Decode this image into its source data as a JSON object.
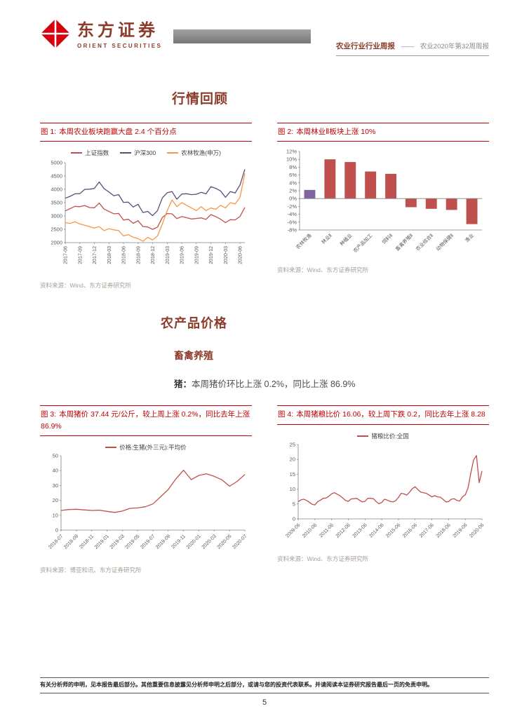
{
  "page": {
    "number": "5"
  },
  "header": {
    "brand_cn": "东方证券",
    "brand_en": "ORIENT SECURITIES",
    "report_type": "农业行业行业周报",
    "separator": "——",
    "report_title": "农业2020年第32周周报"
  },
  "sections": {
    "s1_title": "行情回顾",
    "s2_title": "农产品价格",
    "s2_sub": "畜禽养殖",
    "pig_label": "猪：",
    "pig_text": "本周猪价环比上涨 0.2%，同比上涨 86.9%"
  },
  "figures": [
    {
      "num": "图 1:",
      "caption": "本周农业板块跑赢大盘 2.4 个百分点",
      "source": "资料来源：Wind、东方证券研究所"
    },
    {
      "num": "图 2:",
      "caption": "本周林业Ⅱ板块上涨 10%",
      "source": "资料来源：Wind、东方证券研究所"
    },
    {
      "num": "图 3:",
      "caption": "本周猪价 37.44 元/公斤，较上周上涨 0.2%，同比去年上涨 86.9%",
      "source": "资料来源：博亚和讯、东方证券研究所"
    },
    {
      "num": "图 4:",
      "caption": "本周猪粮比价 16.06，较上周下跌 0.2，同比去年上涨 8.28",
      "source": "资料来源：Wind、东方证券研究所"
    }
  ],
  "footer": {
    "disclaimer": "有关分析师的申明，见本报告最后部分。其他重要信息披露见分析师申明之后部分，或请与您的投资代表联系。并请阅读本证券研究报告最后一页的免责申明。"
  },
  "colors": {
    "accent_red": "#C00000",
    "brand_red": "#8C3B2A",
    "line_red": "#C0504D",
    "line_purple": "#604A7B",
    "line_orange": "#F79646",
    "bar_purple": "#8064A2"
  },
  "chart_data": [
    {
      "type": "line",
      "title": "本周农业板块跑赢大盘 2.4 个百分点",
      "ylim": [
        2000,
        5000
      ],
      "y_step": 500,
      "y_suffix": "",
      "x_tick_every": 3,
      "x_label_rotate": -90,
      "x_tick_labels": [
        "2017-06",
        "2017-09",
        "2017-12",
        "2018-03",
        "2018-06",
        "2018-09",
        "2018-12",
        "2019-03",
        "2019-06",
        "2019-09",
        "2019-12",
        "2020-03",
        "2020-06"
      ],
      "legend_position": "top",
      "series": [
        {
          "name": "上证指数",
          "color": "#C0504D",
          "values": [
            3192,
            3273,
            3361,
            3348,
            3393,
            3317,
            3307,
            3481,
            3259,
            3169,
            3082,
            3095,
            2847,
            2876,
            2725,
            2821,
            2603,
            2588,
            2494,
            2585,
            2941,
            3091,
            3078,
            2899,
            2979,
            2933,
            2886,
            2905,
            2929,
            2872,
            3050,
            2977,
            2880,
            2750,
            2860,
            2852,
            2985,
            3320
          ]
        },
        {
          "name": "沪深300",
          "color": "#604A7B",
          "values": [
            3666,
            3737,
            3831,
            3837,
            3998,
            4006,
            4031,
            4276,
            4023,
            3899,
            3757,
            3802,
            3511,
            3519,
            3334,
            3439,
            3129,
            3172,
            3011,
            3202,
            3678,
            3872,
            3913,
            3630,
            3825,
            3835,
            3800,
            3815,
            3887,
            3828,
            4097,
            4036,
            3940,
            3700,
            3912,
            3867,
            4164,
            4750
          ]
        },
        {
          "name": "农林牧渔(申万)",
          "color": "#F79646",
          "values": [
            2750,
            2720,
            2780,
            2700,
            2650,
            2600,
            2550,
            2600,
            2450,
            2520,
            2480,
            2450,
            2250,
            2300,
            2200,
            2150,
            2050,
            2200,
            2100,
            2250,
            2700,
            3200,
            3600,
            3350,
            3500,
            3400,
            3300,
            3200,
            3350,
            3200,
            3300,
            3250,
            3400,
            3300,
            3500,
            3450,
            3700,
            4600
          ]
        }
      ]
    },
    {
      "type": "bar",
      "title": "本周林业Ⅱ板块上涨 10%",
      "ylim": [
        -8,
        12
      ],
      "y_step": 2,
      "y_suffix": "%",
      "x_label_rotate": -45,
      "categories": [
        "农林牧渔",
        "林业Ⅱ",
        "种植业",
        "农产品加工",
        "饲料Ⅱ",
        "畜禽养殖Ⅱ",
        "农业综合Ⅱ",
        "动物保健Ⅱ",
        "渔业"
      ],
      "values": [
        2.2,
        10.0,
        9.3,
        6.9,
        6.3,
        -2.2,
        -2.6,
        -2.9,
        -6.5
      ],
      "colors": [
        "#8064A2",
        "#C0504D",
        "#C0504D",
        "#C0504D",
        "#C0504D",
        "#C0504D",
        "#C0504D",
        "#C0504D",
        "#C0504D"
      ]
    },
    {
      "type": "line",
      "title": "本周猪价 37.44 元/公斤，较上周上涨 0.2%，同比去年上涨 86.9%",
      "ylim": [
        0,
        50
      ],
      "y_step": 10,
      "y_suffix": "",
      "x_tick_every": 2,
      "x_label_rotate": -45,
      "x_tick_labels": [
        "2018-07",
        "2018-09",
        "2018-11",
        "2019-01",
        "2019-03",
        "2019-05",
        "2019-07",
        "2019-09",
        "2019-11",
        "2020-01",
        "2020-03",
        "2020-05",
        "2020-07"
      ],
      "legend_position": "top",
      "series": [
        {
          "name": "价格:生猪(外三元):平均价",
          "color": "#C0504D",
          "values": [
            13.2,
            13.8,
            14.0,
            13.6,
            13.2,
            13.4,
            12.6,
            11.9,
            12.8,
            14.6,
            14.9,
            15.7,
            17.6,
            22.4,
            27.3,
            34.5,
            40.3,
            33.9,
            36.8,
            37.9,
            36.2,
            33.8,
            29.5,
            32.8,
            37.4
          ]
        }
      ]
    },
    {
      "type": "line",
      "title": "本周猪粮比价 16.06，较上周下跌 0.2，同比去年上涨 8.28",
      "ylim": [
        0,
        25
      ],
      "y_step": 5,
      "y_suffix": "",
      "x_tick_every": 6,
      "x_label_rotate": -45,
      "x_tick_labels": [
        "2009-06",
        "2010-06",
        "2011-06",
        "2012-06",
        "2013-06",
        "2014-06",
        "2015-06",
        "2016-06",
        "2017-06",
        "2018-06",
        "2019-06",
        "2020-06"
      ],
      "legend_position": "top",
      "series": [
        {
          "name": "猪粮比价:全国",
          "color": "#C0504D",
          "values": [
            5.8,
            6.4,
            6.6,
            6.2,
            5.6,
            4.9,
            4.7,
            5.8,
            6.3,
            6.9,
            7.0,
            7.6,
            8.4,
            8.8,
            8.3,
            7.8,
            7.0,
            6.2,
            5.9,
            6.7,
            6.8,
            6.9,
            6.3,
            5.7,
            5.9,
            6.9,
            6.9,
            6.8,
            5.8,
            5.1,
            5.5,
            6.6,
            6.3,
            5.9,
            5.7,
            6.1,
            7.2,
            8.6,
            8.4,
            8.0,
            9.0,
            10.2,
            10.8,
            9.8,
            9.0,
            8.8,
            8.6,
            8.0,
            7.4,
            7.8,
            7.4,
            7.3,
            6.6,
            5.7,
            5.8,
            6.6,
            6.8,
            6.2,
            6.0,
            7.4,
            8.1,
            10.5,
            15.5,
            19.8,
            21.3,
            12.2,
            16.1
          ]
        }
      ]
    }
  ]
}
